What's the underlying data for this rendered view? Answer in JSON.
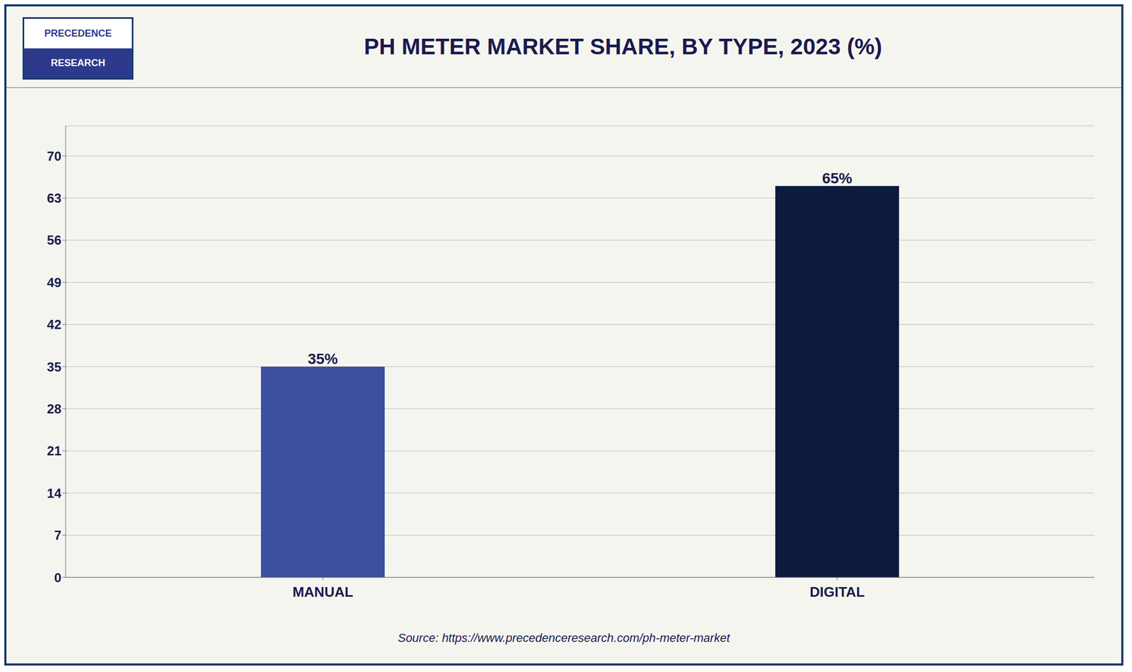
{
  "chart_data": {
    "type": "bar",
    "title": "PH METER MARKET SHARE, BY TYPE, 2023 (%)",
    "categories": [
      "MANUAL",
      "DIGITAL"
    ],
    "values": [
      35,
      65
    ],
    "value_labels": [
      "35%",
      "65%"
    ],
    "data_labels": true,
    "colors": [
      "#3d4f9f",
      "#0d1b3e"
    ],
    "ylim": [
      0,
      75
    ],
    "yticks": [
      0,
      7,
      14,
      21,
      28,
      35,
      42,
      49,
      56,
      63,
      70
    ],
    "grid": true,
    "annotations": [
      "PRECEDENCE",
      "RESEARCH",
      "Source: https://www.precedenceresearch.com/ph-meter-market"
    ]
  }
}
